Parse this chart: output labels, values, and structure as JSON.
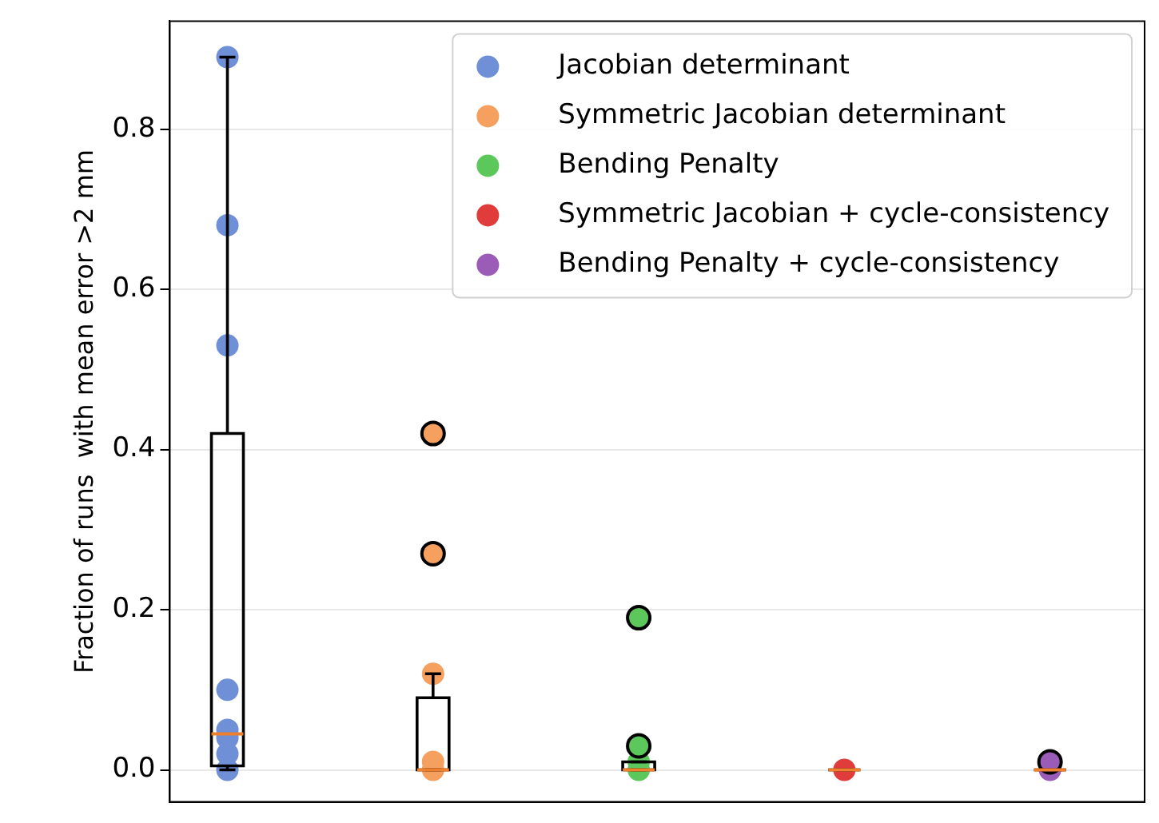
{
  "chart_data": {
    "type": "box",
    "ylabel": "Fraction of runs  with mean error >2 mm",
    "categories": [
      null,
      null,
      null,
      null,
      null
    ],
    "boxes": [
      {
        "low": 0,
        "q1": 0.005,
        "median": 0.045,
        "q3": 0.42,
        "high": 0.89
      },
      {
        "low": 0,
        "q1": 0,
        "median": 0,
        "q3": 0.09,
        "high": 0.12
      },
      {
        "low": 0,
        "q1": 0,
        "median": 0,
        "q3": 0.01,
        "high": 0.01
      },
      {
        "low": 0,
        "q1": 0,
        "median": 0,
        "q3": 0,
        "high": 0
      },
      {
        "low": 0,
        "q1": 0,
        "median": 0,
        "q3": 0,
        "high": 0
      }
    ],
    "series": [
      {
        "type": "scatter",
        "name": "Jacobian determinant",
        "color": "#6f8fd6",
        "values": [
          0.89,
          null,
          null,
          null,
          null
        ]
      },
      {
        "type": "scatter",
        "color": "#6f8fd6",
        "values": [
          0.68,
          null,
          null,
          null,
          null
        ]
      },
      {
        "type": "scatter",
        "color": "#6f8fd6",
        "values": [
          0.53,
          null,
          null,
          null,
          null
        ]
      },
      {
        "type": "scatter",
        "color": "#6f8fd6",
        "values": [
          0.1,
          null,
          null,
          null,
          null
        ]
      },
      {
        "type": "scatter",
        "color": "#6f8fd6",
        "values": [
          0.05,
          null,
          null,
          null,
          null
        ]
      },
      {
        "type": "scatter",
        "color": "#6f8fd6",
        "values": [
          0.04,
          null,
          null,
          null,
          null
        ]
      },
      {
        "type": "scatter",
        "color": "#6f8fd6",
        "values": [
          0.02,
          null,
          null,
          null,
          null
        ]
      },
      {
        "type": "scatter",
        "color": "#6f8fd6",
        "values": [
          0,
          null,
          null,
          null,
          null
        ]
      },
      {
        "type": "scatter",
        "name": "Symmetric Jacobian determinant",
        "color": "#f5a05e",
        "values": [
          null,
          0.42,
          null,
          null,
          null
        ]
      },
      {
        "type": "scatter",
        "color": "#f5a05e",
        "values": [
          null,
          0.27,
          null,
          null,
          null
        ]
      },
      {
        "type": "scatter",
        "color": "#f5a05e",
        "values": [
          null,
          0.12,
          null,
          null,
          null
        ]
      },
      {
        "type": "scatter",
        "color": "#f5a05e",
        "values": [
          null,
          0.01,
          null,
          null,
          null
        ]
      },
      {
        "type": "scatter",
        "color": "#f5a05e",
        "values": [
          null,
          0,
          null,
          null,
          null
        ]
      },
      {
        "type": "scatter",
        "name": "Bending Penalty",
        "color": "#5cc85c",
        "values": [
          null,
          null,
          0.19,
          null,
          null
        ]
      },
      {
        "type": "scatter",
        "color": "#5cc85c",
        "values": [
          null,
          null,
          0.03,
          null,
          null
        ]
      },
      {
        "type": "scatter",
        "color": "#5cc85c",
        "values": [
          null,
          null,
          0.01,
          null,
          null
        ]
      },
      {
        "type": "scatter",
        "color": "#5cc85c",
        "values": [
          null,
          null,
          0,
          null,
          null
        ]
      },
      {
        "type": "scatter",
        "name": "Symmetric Jacobian + cycle-consistency",
        "color": "#e03c3c",
        "values": [
          null,
          null,
          null,
          0,
          null
        ]
      },
      {
        "type": "scatter",
        "name": "Bending Penalty + cycle-consistency",
        "color": "#9b5cb8",
        "values": [
          null,
          null,
          null,
          null,
          0.01
        ]
      },
      {
        "type": "scatter",
        "color": "#9b5cb8",
        "values": [
          null,
          null,
          null,
          null,
          0
        ]
      }
    ],
    "ylim": [
      -0.04,
      0.935
    ],
    "yticks": [
      {
        "value": 0,
        "label": "0.0"
      },
      {
        "value": 0.2,
        "label": "0.2"
      },
      {
        "value": 0.4,
        "label": "0.4"
      },
      {
        "value": 0.6,
        "label": "0.6"
      },
      {
        "value": 0.8,
        "label": "0.8"
      }
    ],
    "tick_labels": "y",
    "grid": "y",
    "legend": "top right",
    "marker": "circle"
  }
}
